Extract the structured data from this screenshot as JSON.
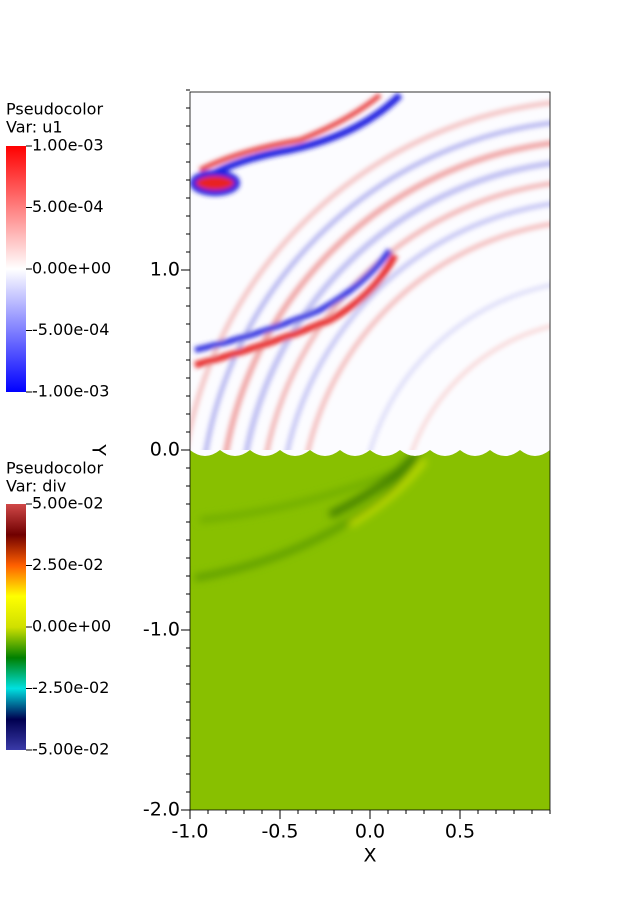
{
  "chart_data": {
    "type": "pseudocolor",
    "xlabel": "X",
    "ylabel": "Y",
    "xlim": [
      -1,
      1
    ],
    "ylim": [
      -2,
      2
    ],
    "xticks": [
      {
        "value": -1,
        "label": "-1.0"
      },
      {
        "value": -0.5,
        "label": "-0.5"
      },
      {
        "value": 0,
        "label": "0.0"
      },
      {
        "value": 0.5,
        "label": "0.5"
      }
    ],
    "yticks": [
      {
        "value": -2,
        "label": "-2.0"
      },
      {
        "value": -1,
        "label": "-1.0"
      },
      {
        "value": 0,
        "label": "0.0"
      },
      {
        "value": 1,
        "label": "1.0"
      }
    ],
    "legends": [
      {
        "title": "Pseudocolor",
        "var": "Var: u1",
        "lim": [
          -0.001,
          0.001
        ],
        "colors": [
          "#0000ff",
          "#ffffff",
          "#ff0000"
        ],
        "ticks": [
          {
            "value": 0.001,
            "label": "1.00e-03"
          },
          {
            "value": 0.0005,
            "label": "5.00e-04"
          },
          {
            "value": 0,
            "label": "0.00e+00"
          },
          {
            "value": -0.0005,
            "label": "-5.00e-04"
          },
          {
            "value": -0.001,
            "label": "-1.00e-03"
          }
        ]
      },
      {
        "title": "Pseudocolor",
        "var": "Var: div",
        "lim": [
          -0.05,
          0.05
        ],
        "colors": [
          "#3a3aa8",
          "#000050",
          "#00e0e0",
          "#008000",
          "#d0e000",
          "#ffff00",
          "#ff6000",
          "#700000",
          "#d04848"
        ],
        "ticks": [
          {
            "value": 0.05,
            "label": "5.00e-02"
          },
          {
            "value": 0.025,
            "label": "2.50e-02"
          },
          {
            "value": 0,
            "label": "0.00e+00"
          },
          {
            "value": -0.025,
            "label": "-2.50e-02"
          },
          {
            "value": -0.05,
            "label": "-5.00e-02"
          }
        ]
      }
    ]
  }
}
